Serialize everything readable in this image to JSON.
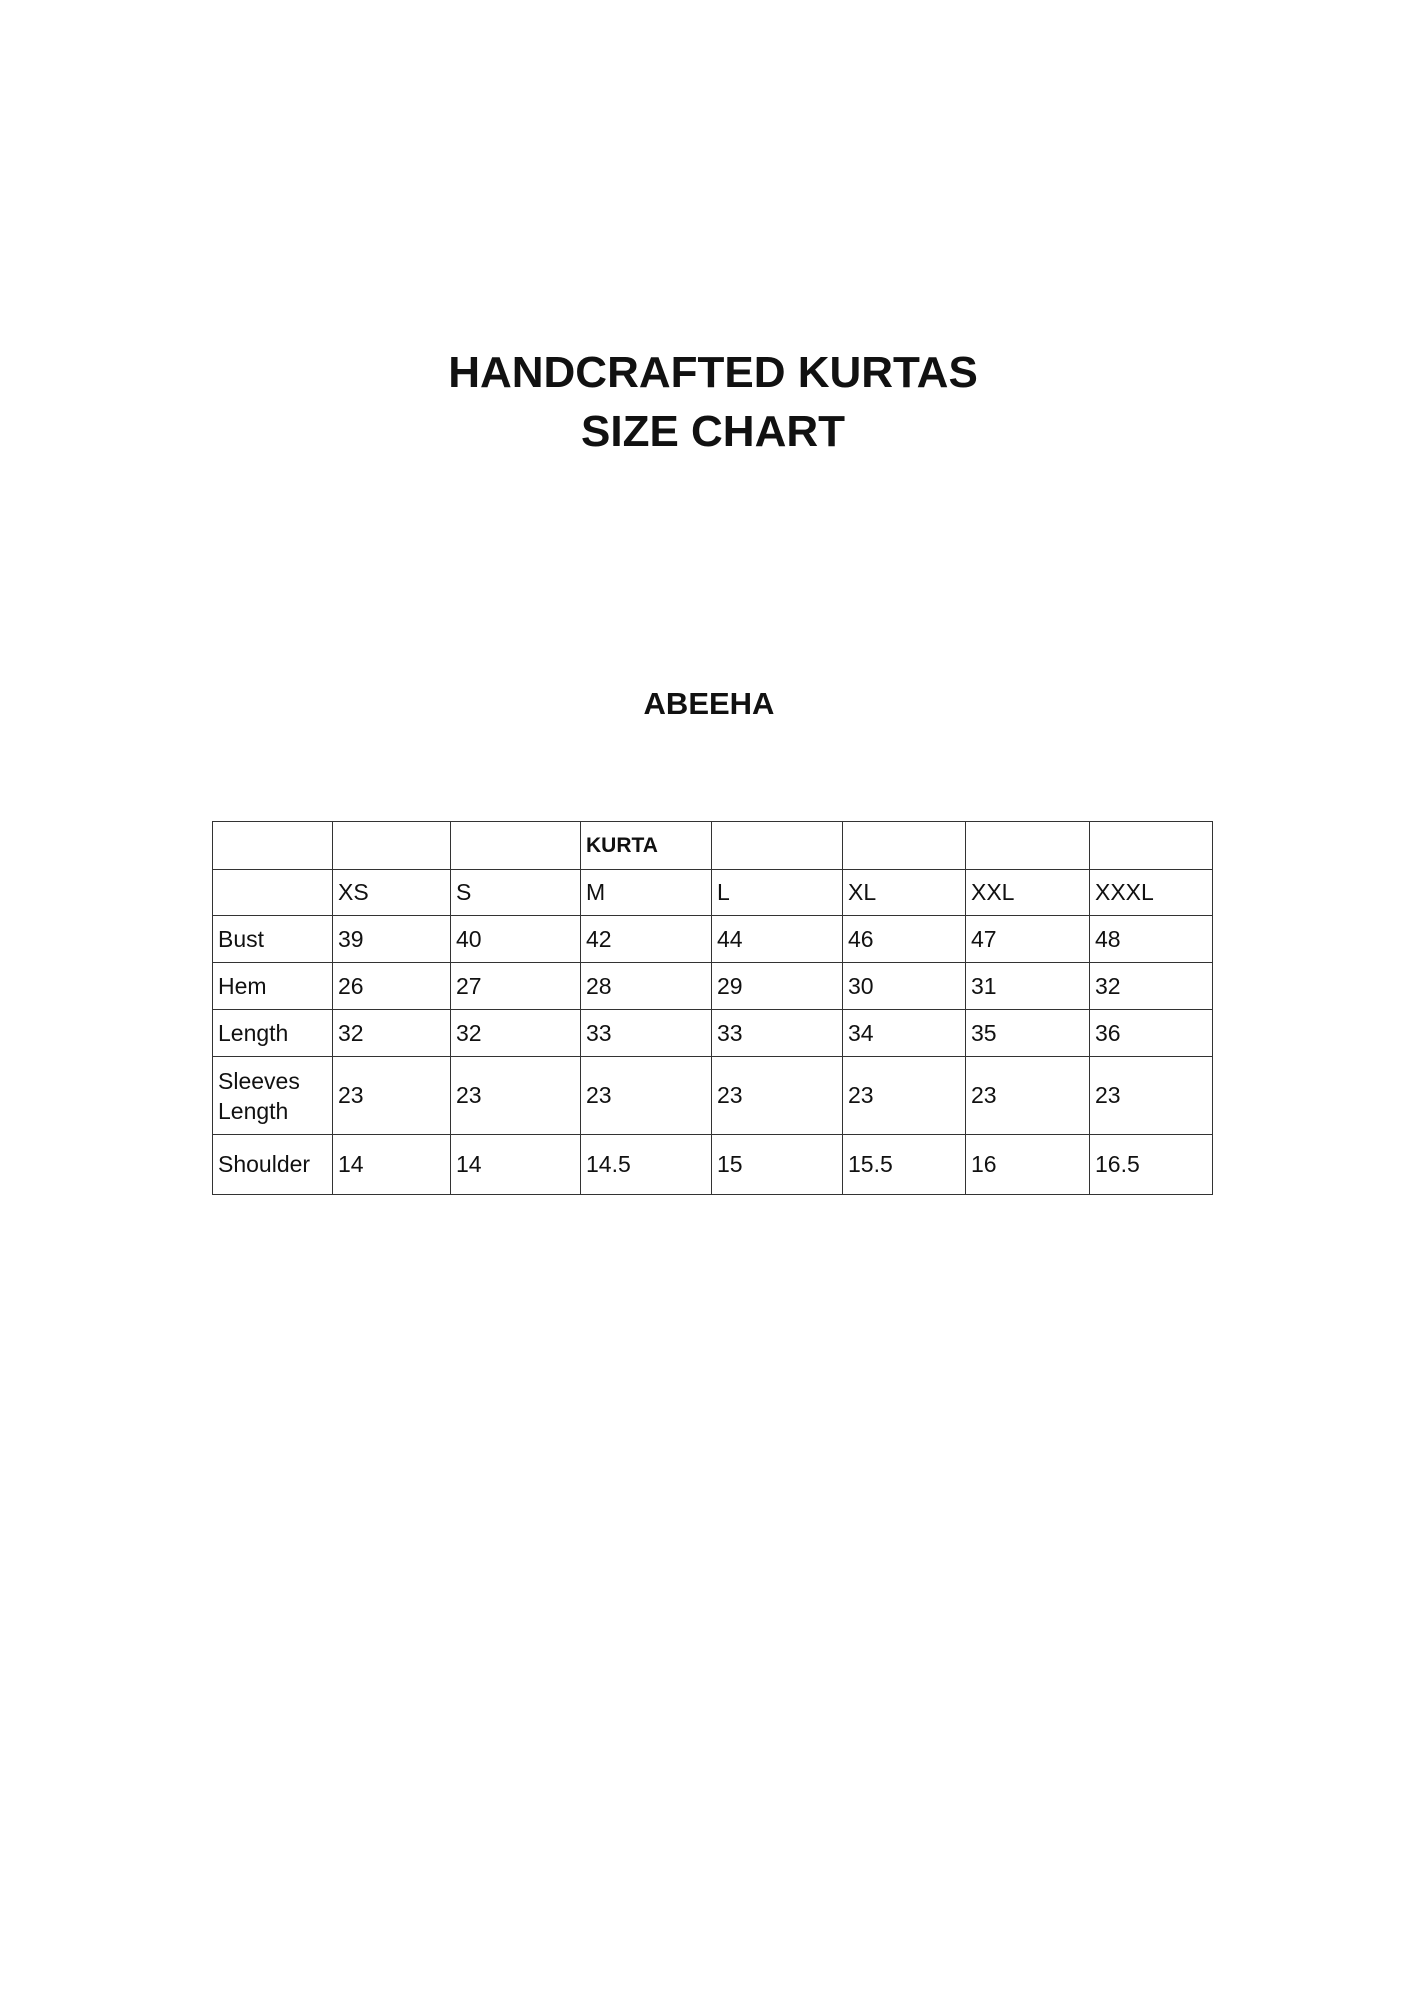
{
  "title_line1": "HANDCRAFTED KURTAS",
  "title_line2": "SIZE CHART",
  "subtitle": "ABEEHA",
  "table": {
    "group_header": "KURTA",
    "sizes": [
      "XS",
      "S",
      "M",
      "L",
      "XL",
      "XXL",
      "XXXL"
    ],
    "rows": [
      {
        "label": "Bust",
        "values": [
          "39",
          "40",
          "42",
          "44",
          "46",
          "47",
          "48"
        ]
      },
      {
        "label": "Hem",
        "values": [
          "26",
          "27",
          "28",
          "29",
          "30",
          "31",
          "32"
        ]
      },
      {
        "label": "Length",
        "values": [
          "32",
          "32",
          "33",
          "33",
          "34",
          "35",
          "36"
        ]
      },
      {
        "label": "Sleeves Length",
        "values": [
          "23",
          "23",
          "23",
          "23",
          "23",
          "23",
          "23"
        ]
      },
      {
        "label": "Shoulder",
        "values": [
          "14",
          "14",
          "14.5",
          "15",
          "15.5",
          "16",
          "16.5"
        ]
      }
    ]
  }
}
